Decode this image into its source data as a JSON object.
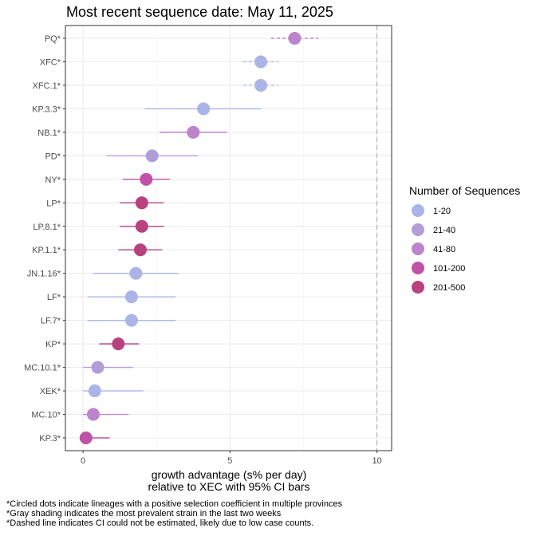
{
  "chart_data": {
    "type": "scatter",
    "title": "Most recent sequence date: May 11, 2025",
    "xlabel_line1": "growth advantage (s% per day)",
    "xlabel_line2": "relative to  XEC  with 95% CI bars",
    "xlim": [
      -0.6,
      10.5
    ],
    "xticks": [
      0,
      5,
      10
    ],
    "reference_line_x": 10,
    "grid": true,
    "legend_position": "right",
    "legend_title": "Number of Sequences",
    "legend": [
      {
        "label": "1-20",
        "color": "#aab4e6"
      },
      {
        "label": "21-40",
        "color": "#b09ed8"
      },
      {
        "label": "41-80",
        "color": "#bb84cc"
      },
      {
        "label": "101-200",
        "color": "#bf52a6"
      },
      {
        "label": "201-500",
        "color": "#b8427e"
      }
    ],
    "points": [
      {
        "label": "PQ*",
        "value": 7.2,
        "lo": 6.4,
        "hi": 8.0,
        "group": 2,
        "dashed": true
      },
      {
        "label": "XFC*",
        "value": 6.05,
        "lo": 5.45,
        "hi": 6.65,
        "group": 0,
        "dashed": true
      },
      {
        "label": "XFC.1*",
        "value": 6.05,
        "lo": 5.45,
        "hi": 6.65,
        "group": 0,
        "dashed": true
      },
      {
        "label": "KP.3.3*",
        "value": 4.1,
        "lo": 2.1,
        "hi": 6.05,
        "group": 0,
        "dashed": false
      },
      {
        "label": "NB.1*",
        "value": 3.75,
        "lo": 2.6,
        "hi": 4.9,
        "group": 2,
        "dashed": false
      },
      {
        "label": "PD*",
        "value": 2.35,
        "lo": 0.8,
        "hi": 3.9,
        "group": 1,
        "dashed": false
      },
      {
        "label": "NY*",
        "value": 2.15,
        "lo": 1.35,
        "hi": 2.95,
        "group": 3,
        "dashed": false
      },
      {
        "label": "LP*",
        "value": 2.0,
        "lo": 1.25,
        "hi": 2.75,
        "group": 4,
        "dashed": false
      },
      {
        "label": "LP.8.1*",
        "value": 2.0,
        "lo": 1.25,
        "hi": 2.75,
        "group": 4,
        "dashed": false
      },
      {
        "label": "KP.1.1*",
        "value": 1.95,
        "lo": 1.2,
        "hi": 2.7,
        "group": 4,
        "dashed": false
      },
      {
        "label": "JN.1.16*",
        "value": 1.8,
        "lo": 0.35,
        "hi": 3.25,
        "group": 0,
        "dashed": false
      },
      {
        "label": "LF*",
        "value": 1.65,
        "lo": 0.15,
        "hi": 3.15,
        "group": 0,
        "dashed": false
      },
      {
        "label": "LF.7*",
        "value": 1.65,
        "lo": 0.15,
        "hi": 3.15,
        "group": 0,
        "dashed": false
      },
      {
        "label": "KP*",
        "value": 1.2,
        "lo": 0.55,
        "hi": 1.9,
        "group": 4,
        "dashed": false
      },
      {
        "label": "MC.10.1*",
        "value": 0.5,
        "lo": 0.0,
        "hi": 1.7,
        "group": 1,
        "dashed": false
      },
      {
        "label": "XEK*",
        "value": 0.4,
        "lo": 0.0,
        "hi": 2.05,
        "group": 0,
        "dashed": false
      },
      {
        "label": "MC.10*",
        "value": 0.35,
        "lo": 0.0,
        "hi": 1.55,
        "group": 2,
        "dashed": false
      },
      {
        "label": "KP.3*",
        "value": 0.1,
        "lo": 0.0,
        "hi": 0.9,
        "group": 3,
        "dashed": false
      }
    ]
  },
  "footnotes": [
    "*Circled dots indicate lineages with a positive selection coefficient in multiple provinces",
    "*Gray shading indicates the most prevalent strain in the last two weeks",
    "*Dashed line indicates CI could not be estimated, likely due to low case counts."
  ]
}
